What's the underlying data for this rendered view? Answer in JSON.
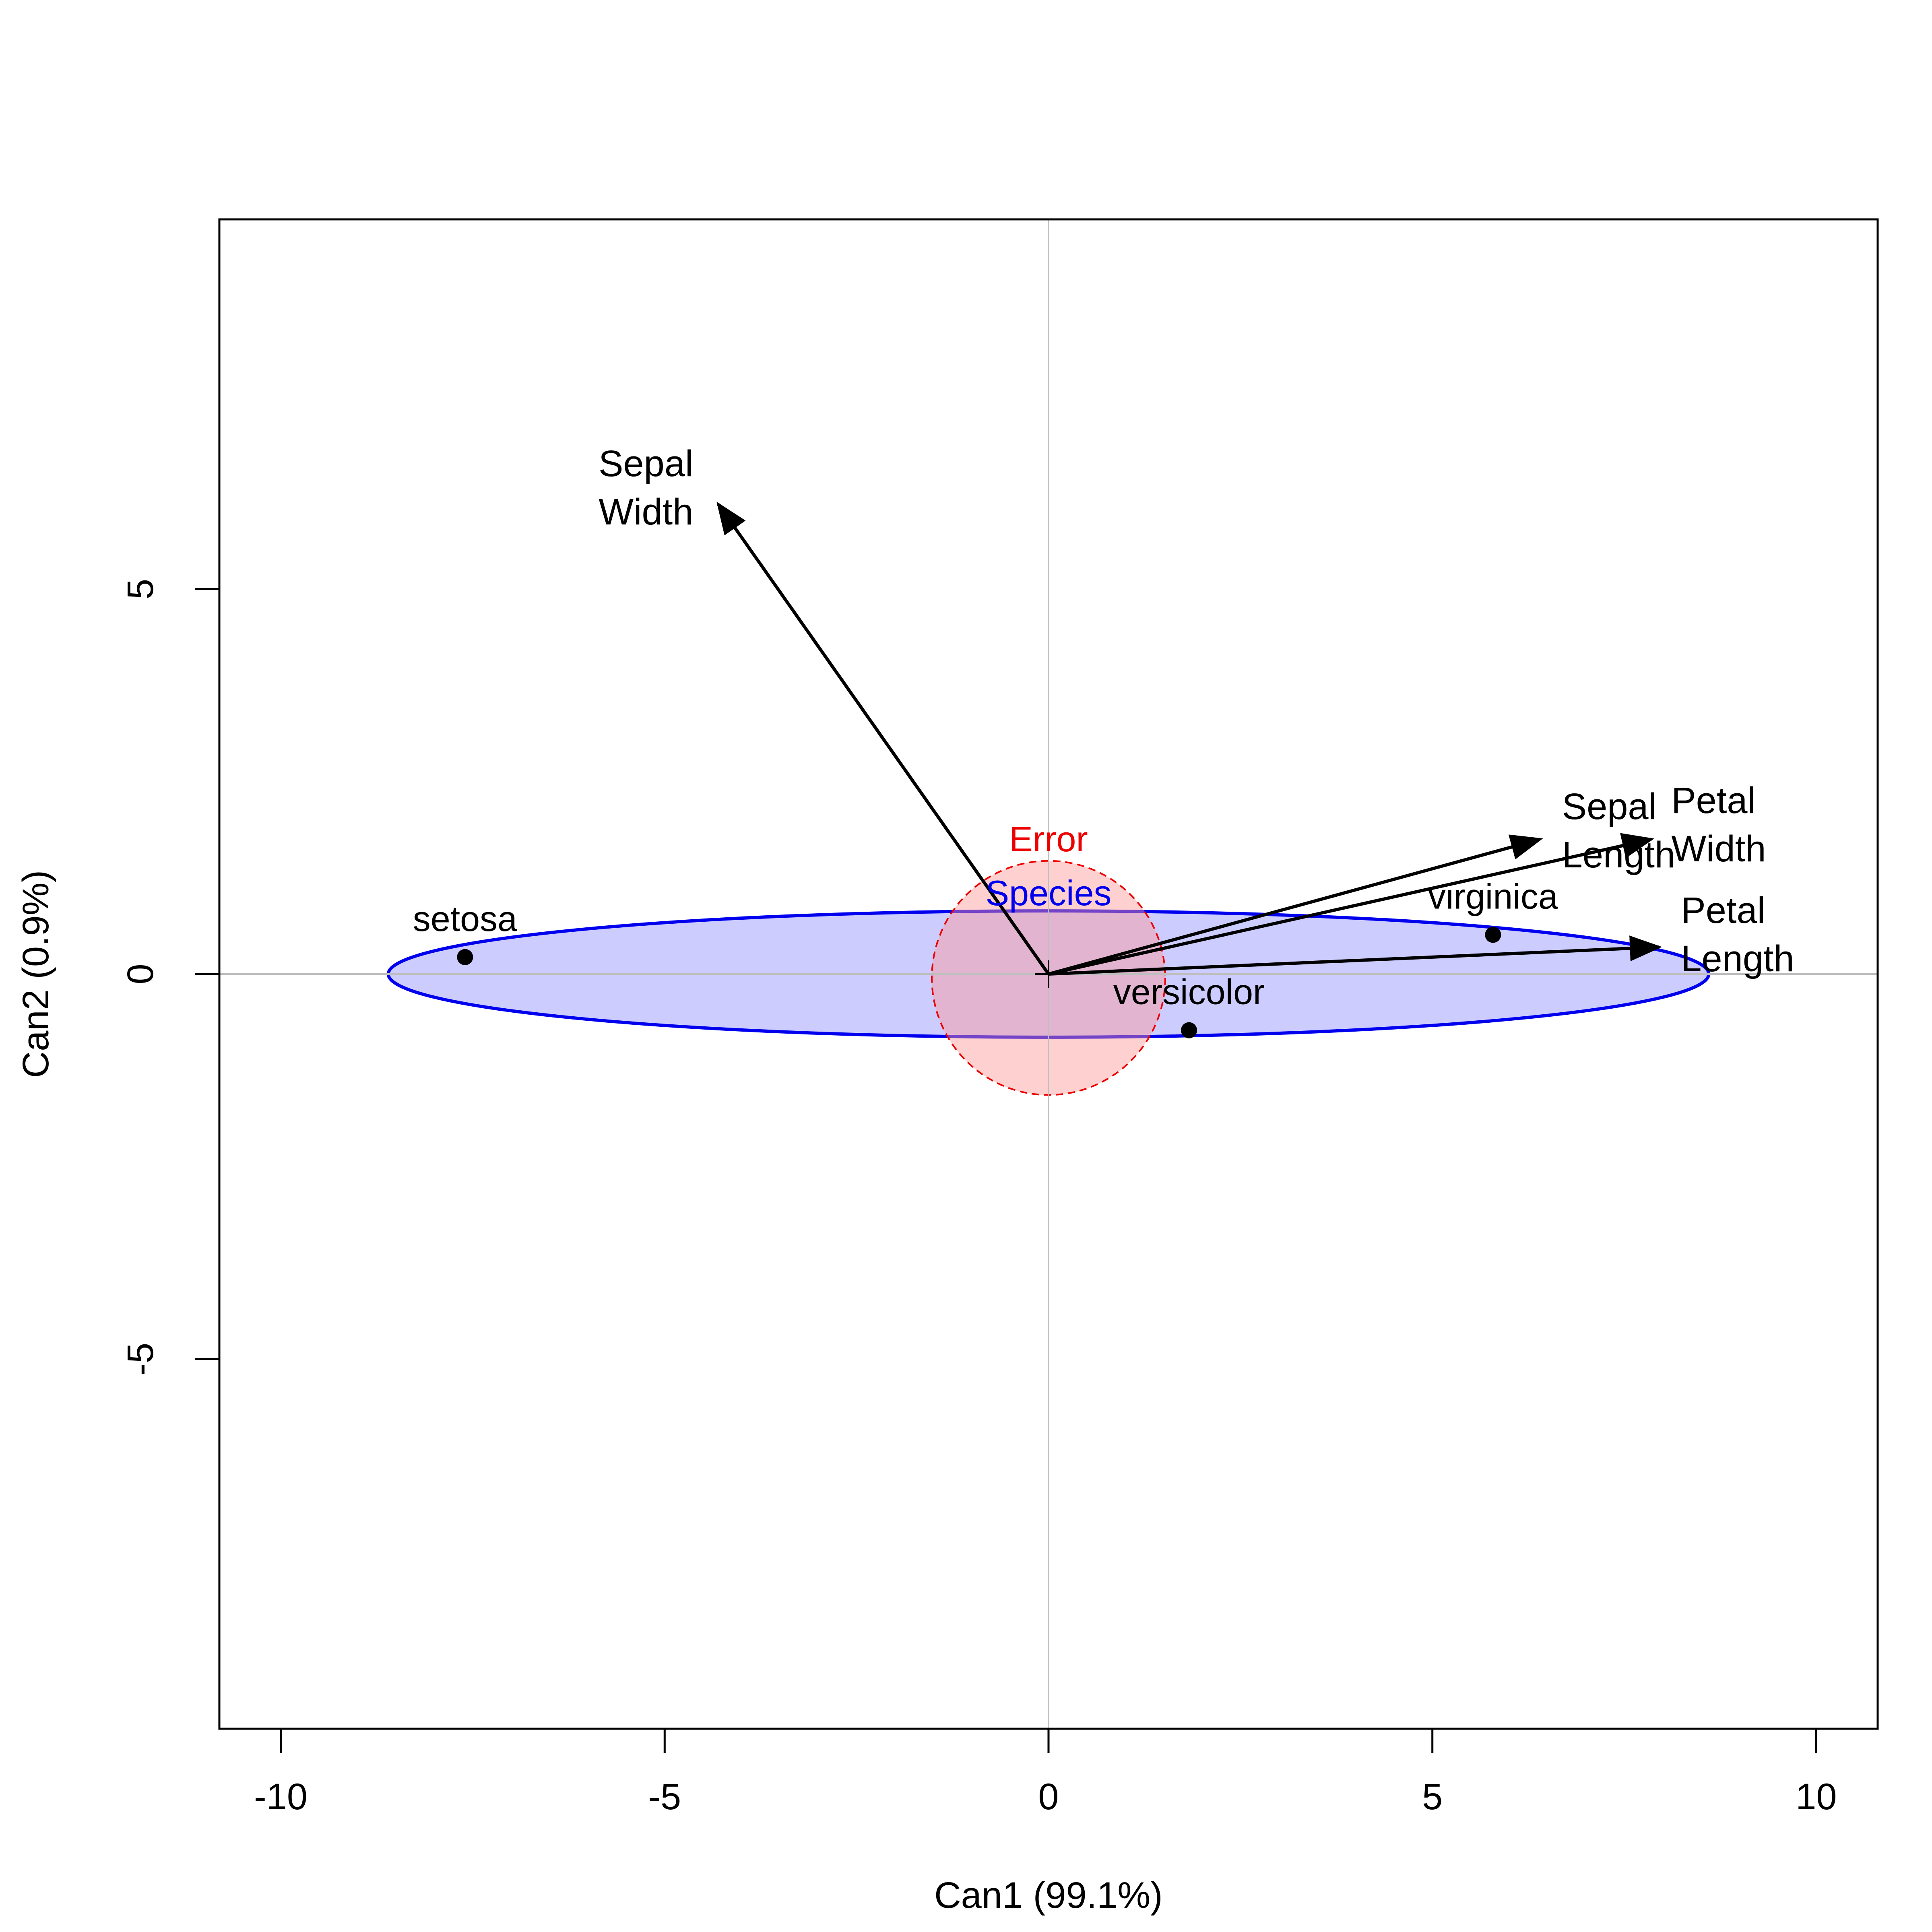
{
  "chart_data": {
    "type": "scatter",
    "subtype": "canonical-discriminant-plot",
    "title": "",
    "xlabel": "Can1 (99.1%)",
    "ylabel": "Can2 (0.9%)",
    "xlim": [
      -10.8,
      10.8
    ],
    "ylim": [
      -9.8,
      9.8
    ],
    "xticks": [
      -10,
      -5,
      0,
      5,
      10
    ],
    "yticks": [
      -5,
      0,
      5
    ],
    "reference_lines": {
      "x": 0,
      "y": 0,
      "color": "#bebebe"
    },
    "points": [
      {
        "name": "setosa",
        "x": -7.6,
        "y": 0.22
      },
      {
        "name": "versicolor",
        "x": 1.83,
        "y": -0.73
      },
      {
        "name": "virginica",
        "x": 5.79,
        "y": 0.51
      }
    ],
    "vectors": [
      {
        "label": [
          "Sepal",
          "Width"
        ],
        "x": -4.3,
        "y": 6.1
      },
      {
        "label": [
          "Sepal",
          "Length"
        ],
        "x": 6.4,
        "y": 1.75
      },
      {
        "label": [
          "Petal",
          "Width"
        ],
        "x": 7.85,
        "y": 1.75
      },
      {
        "label": [
          "Petal",
          "Length"
        ],
        "x": 7.95,
        "y": 0.35
      }
    ],
    "ellipses": [
      {
        "name": "Species",
        "cx": 0,
        "cy": 0,
        "rx": 8.6,
        "ry": 0.82,
        "stroke": "#0000ee",
        "fill": "#ccccff",
        "dashed": false,
        "label_x": 0,
        "label_y": 1.05
      },
      {
        "name": "Error",
        "cx": 0,
        "cy": -0.05,
        "rx": 1.52,
        "ry": 1.52,
        "stroke": "#ee0000",
        "fill": "rgba(255,150,150,0.45)",
        "dashed": true,
        "label_x": 0,
        "label_y": 1.75
      }
    ],
    "grid": false,
    "legend": "none",
    "colors": {
      "species": "#0000ee",
      "species_fill": "#ccccff",
      "error": "#ee0000",
      "error_fill": "#ffb4b4",
      "axis": "#000000",
      "reference": "#bebebe"
    }
  }
}
